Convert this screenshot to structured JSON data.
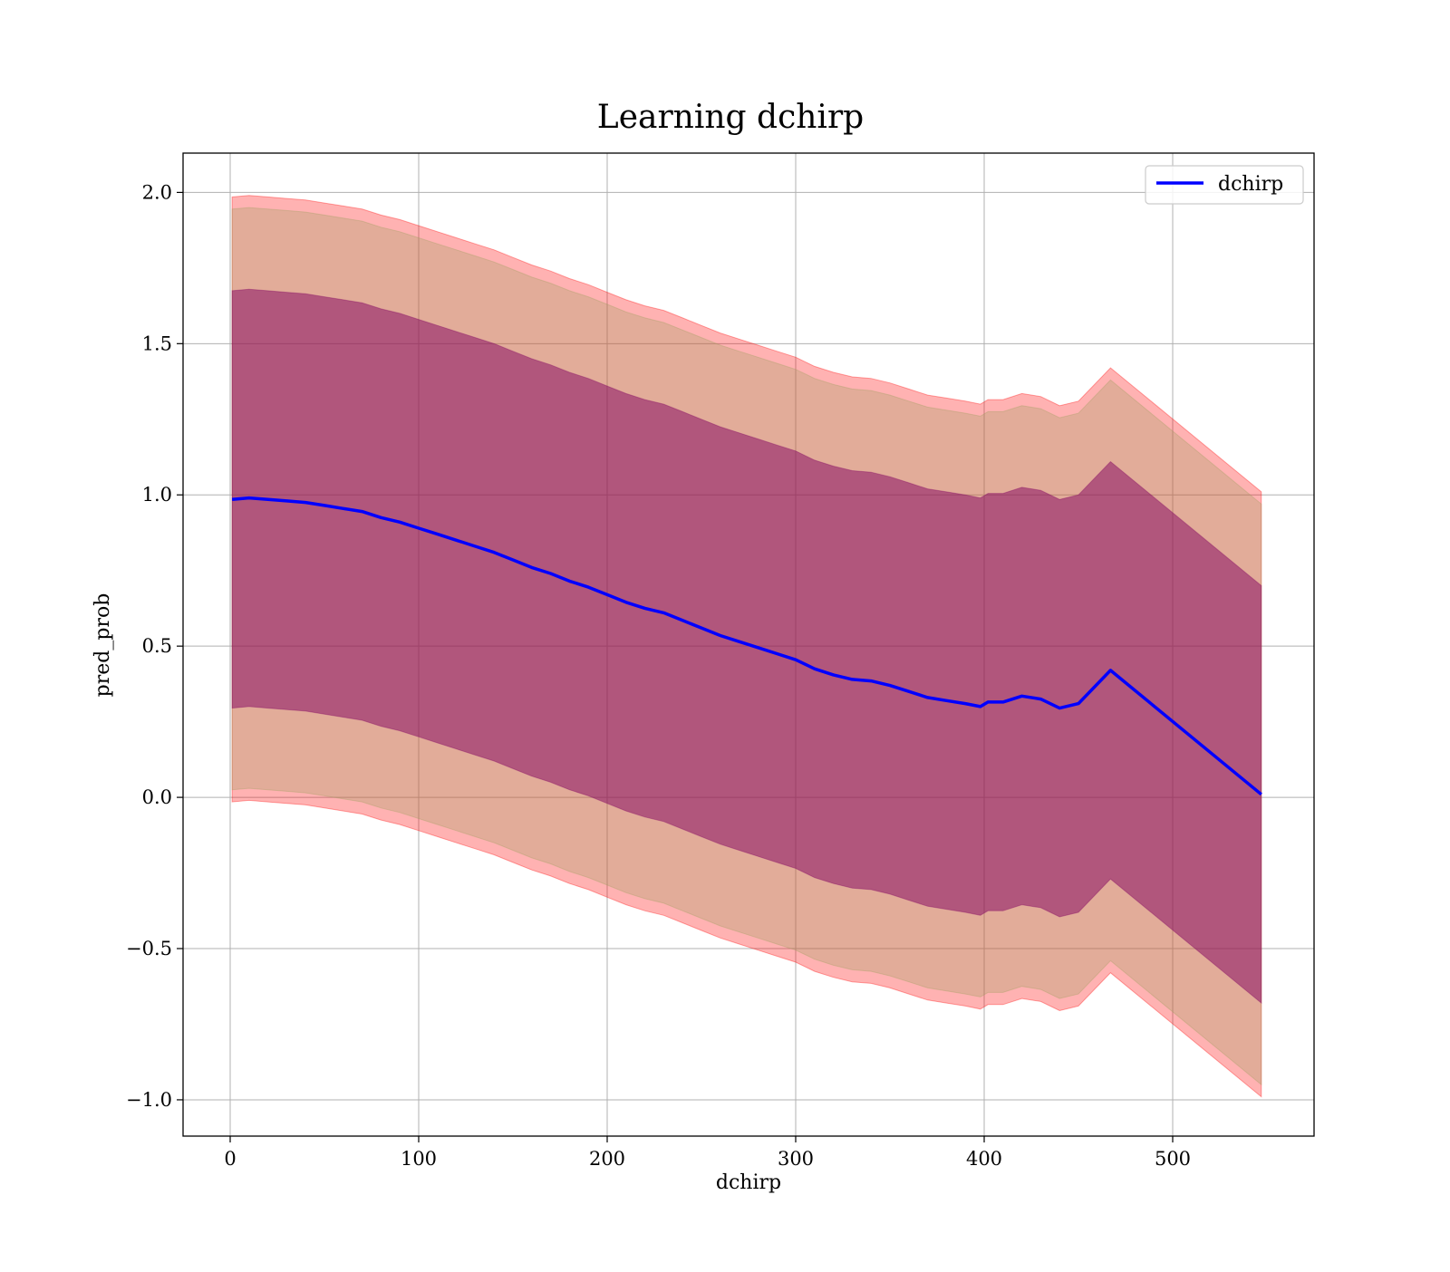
{
  "chart_data": {
    "type": "line",
    "title": "Learning dchirp",
    "xlabel": "dchirp",
    "ylabel": "pred_prob",
    "xlim": [
      -25,
      575
    ],
    "ylim": [
      -1.12,
      2.13
    ],
    "xticks": [
      0,
      100,
      200,
      300,
      400,
      500
    ],
    "yticks": [
      -1.0,
      -0.5,
      0.0,
      0.5,
      1.0,
      1.5,
      2.0
    ],
    "xtick_labels": [
      "0",
      "100",
      "200",
      "300",
      "400",
      "500"
    ],
    "ytick_labels": [
      "−1.0",
      "−0.5",
      "0.0",
      "0.5",
      "1.0",
      "1.5",
      "2.0"
    ],
    "grid": true,
    "legend_position": "top-right",
    "series": [
      {
        "name": "dchirp",
        "color": "#0000ff",
        "x": [
          1,
          10,
          20,
          30,
          40,
          50,
          60,
          70,
          80,
          90,
          100,
          110,
          120,
          130,
          140,
          150,
          160,
          170,
          180,
          190,
          200,
          210,
          220,
          230,
          240,
          250,
          260,
          270,
          280,
          290,
          300,
          310,
          320,
          330,
          340,
          350,
          360,
          370,
          380,
          390,
          398,
          402,
          410,
          420,
          430,
          440,
          450,
          467,
          547
        ],
        "y": [
          0.985,
          0.99,
          0.985,
          0.98,
          0.975,
          0.965,
          0.955,
          0.945,
          0.925,
          0.91,
          0.89,
          0.87,
          0.85,
          0.83,
          0.81,
          0.785,
          0.76,
          0.74,
          0.715,
          0.695,
          0.67,
          0.645,
          0.625,
          0.61,
          0.585,
          0.56,
          0.535,
          0.515,
          0.495,
          0.475,
          0.455,
          0.425,
          0.405,
          0.39,
          0.385,
          0.37,
          0.35,
          0.33,
          0.32,
          0.31,
          0.3,
          0.315,
          0.315,
          0.335,
          0.325,
          0.295,
          0.31,
          0.42,
          0.01
        ]
      }
    ],
    "bands": [
      {
        "half_width": 1.0,
        "fill": "#ff0000",
        "opacity": 0.3
      },
      {
        "half_width": 0.96,
        "fill": "#a0a060",
        "opacity": 0.3
      },
      {
        "half_width": 0.69,
        "fill": "#800060",
        "opacity": 0.5
      }
    ]
  }
}
